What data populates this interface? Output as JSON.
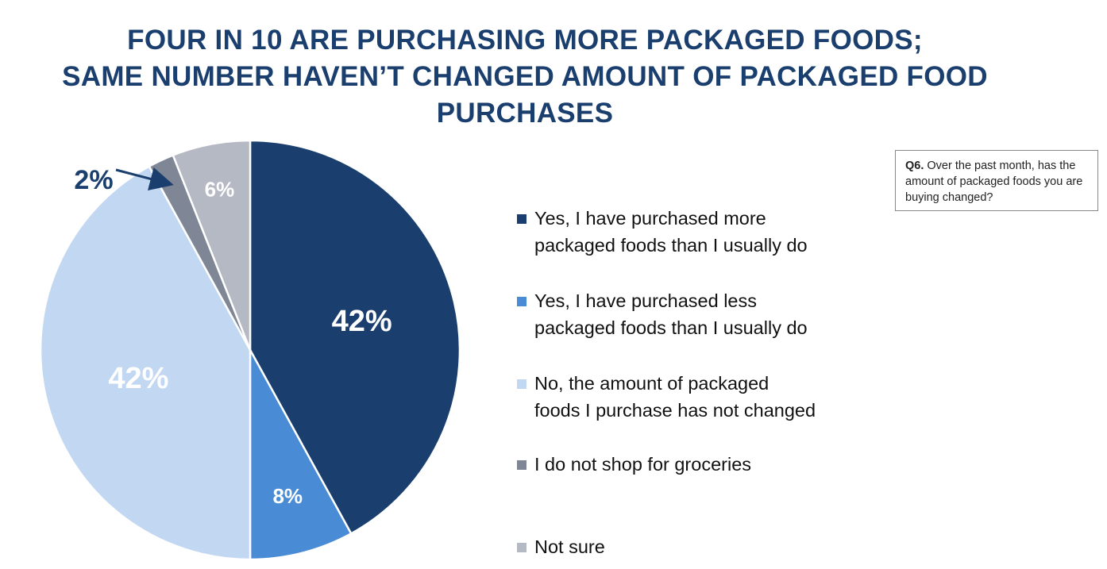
{
  "header": {
    "title_lines": [
      "FOUR IN 10 ARE PURCHASING MORE PACKAGED FOODS;",
      "SAME NUMBER HAVEN’T CHANGED AMOUNT OF PACKAGED FOOD",
      "PURCHASES"
    ]
  },
  "question_box": {
    "label": "Q6.",
    "text": "Over the past month, has the amount of packaged foods you are buying changed?"
  },
  "chart_data": {
    "type": "pie",
    "title": "",
    "start_angle_deg": 0,
    "direction": "clockwise",
    "slices": [
      {
        "label": "Yes, I have purchased more packaged foods than I usually do",
        "value": 42,
        "display": "42%",
        "color": "#1a3f6e"
      },
      {
        "label": "Yes, I have purchased less packaged foods than I usually do",
        "value": 8,
        "display": "8%",
        "color": "#4a8bd6"
      },
      {
        "label": "No, the amount of packaged foods I purchase has not changed",
        "value": 42,
        "display": "42%",
        "color": "#c2d8f2"
      },
      {
        "label": "I do not shop for groceries",
        "value": 2,
        "display": "2%",
        "color": "#7f8797"
      },
      {
        "label": "Not sure",
        "value": 6,
        "display": "6%",
        "color": "#b5b9c3"
      }
    ],
    "legend_position": "right",
    "callout": {
      "slice_index": 3,
      "text": "2%"
    }
  },
  "legend": {
    "items": [
      {
        "line1": "Yes, I have purchased more",
        "line2": "packaged foods than I usually do",
        "color": "#1a3f6e"
      },
      {
        "line1": "Yes, I have purchased less",
        "line2": "packaged foods than I usually do",
        "color": "#4a8bd6"
      },
      {
        "line1": "No, the amount of packaged",
        "line2": "foods I purchase has not changed",
        "color": "#c2d8f2"
      },
      {
        "line1": "I do not shop for groceries",
        "line2": "",
        "color": "#7f8797"
      },
      {
        "line1": "Not sure",
        "line2": "",
        "color": "#b5b9c3"
      }
    ]
  }
}
